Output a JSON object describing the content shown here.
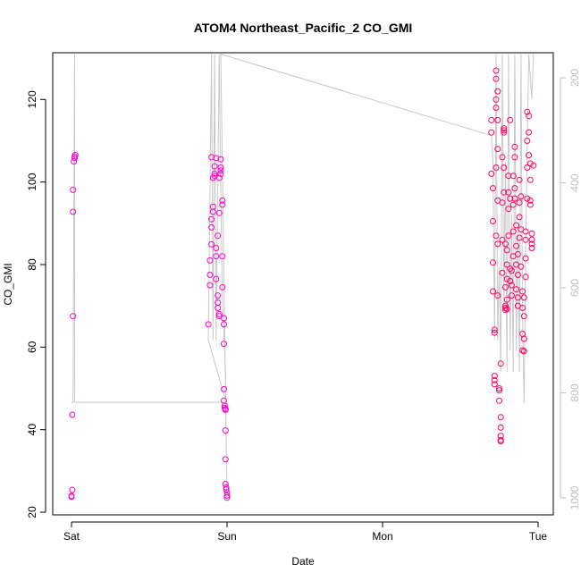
{
  "chart_data": {
    "type": "scatter",
    "title": "ATOM4 Northeast_Pacific_2 CO_GMI",
    "xlabel": "Date",
    "ylabel": "CO_GMI",
    "x_ticks": [
      "Sat",
      "Sun",
      "Mon",
      "Tue"
    ],
    "y_ticks": [
      20,
      40,
      60,
      80,
      100,
      120
    ],
    "y2_ticks": [
      200,
      400,
      600,
      800,
      1000
    ],
    "xlim_days": [
      -0.1,
      3.1
    ],
    "ylim": [
      20,
      131
    ],
    "y2lim": [
      1030,
      155
    ],
    "colors": {
      "points": "#ff00cc",
      "points_late": "#ff0066",
      "pressure": "#c8c8c8",
      "right_axis": "#bfbfbf"
    },
    "series": [
      {
        "values": [
          {
            "d": 0.0,
            "v": 23.7
          },
          {
            "d": 0.0,
            "v": 23.9
          },
          {
            "d": 0.005,
            "v": 25.4
          },
          {
            "d": 0.005,
            "v": 43.6
          },
          {
            "d": 0.01,
            "v": 67.5
          },
          {
            "d": 0.01,
            "v": 92.8
          },
          {
            "d": 0.01,
            "v": 98.1
          },
          {
            "d": 0.015,
            "v": 105.0
          },
          {
            "d": 0.02,
            "v": 105.8
          },
          {
            "d": 0.02,
            "v": 106.2
          },
          {
            "d": 0.025,
            "v": 106.6
          },
          {
            "d": 0.88,
            "v": 65.5
          },
          {
            "d": 0.89,
            "v": 75.0
          },
          {
            "d": 0.89,
            "v": 77.5
          },
          {
            "d": 0.89,
            "v": 81.0
          },
          {
            "d": 0.9,
            "v": 84.9
          },
          {
            "d": 0.9,
            "v": 89.0
          },
          {
            "d": 0.9,
            "v": 91.0
          },
          {
            "d": 0.91,
            "v": 92.8
          },
          {
            "d": 0.91,
            "v": 94.0
          },
          {
            "d": 0.91,
            "v": 101.0
          },
          {
            "d": 0.92,
            "v": 101.5
          },
          {
            "d": 0.92,
            "v": 102.0
          },
          {
            "d": 0.92,
            "v": 103.8
          },
          {
            "d": 0.93,
            "v": 105.8
          },
          {
            "d": 0.9,
            "v": 106.0
          },
          {
            "d": 0.93,
            "v": 76.5
          },
          {
            "d": 0.94,
            "v": 72.5
          },
          {
            "d": 0.94,
            "v": 70.8
          },
          {
            "d": 0.94,
            "v": 69.5
          },
          {
            "d": 0.95,
            "v": 68.0
          },
          {
            "d": 0.95,
            "v": 67.5
          },
          {
            "d": 0.93,
            "v": 82.0
          },
          {
            "d": 0.93,
            "v": 84.0
          },
          {
            "d": 0.94,
            "v": 87.0
          },
          {
            "d": 0.95,
            "v": 92.5
          },
          {
            "d": 0.95,
            "v": 101.0
          },
          {
            "d": 0.96,
            "v": 102.0
          },
          {
            "d": 0.96,
            "v": 102.8
          },
          {
            "d": 0.96,
            "v": 103.5
          },
          {
            "d": 0.96,
            "v": 105.5
          },
          {
            "d": 0.97,
            "v": 95.5
          },
          {
            "d": 0.97,
            "v": 94.5
          },
          {
            "d": 0.97,
            "v": 82.0
          },
          {
            "d": 0.97,
            "v": 74.5
          },
          {
            "d": 0.98,
            "v": 67.0
          },
          {
            "d": 0.98,
            "v": 65.5
          },
          {
            "d": 0.98,
            "v": 60.8
          },
          {
            "d": 0.98,
            "v": 49.8
          },
          {
            "d": 0.98,
            "v": 47.0
          },
          {
            "d": 0.985,
            "v": 45.8
          },
          {
            "d": 0.985,
            "v": 45.3
          },
          {
            "d": 0.99,
            "v": 45.0
          },
          {
            "d": 0.99,
            "v": 44.8
          },
          {
            "d": 0.99,
            "v": 39.8
          },
          {
            "d": 0.99,
            "v": 32.8
          },
          {
            "d": 0.99,
            "v": 26.8
          },
          {
            "d": 0.995,
            "v": 26.0
          },
          {
            "d": 0.995,
            "v": 25.5
          },
          {
            "d": 1.0,
            "v": 24.8
          },
          {
            "d": 1.0,
            "v": 24.0
          },
          {
            "d": 1.0,
            "v": 23.5
          }
        ]
      },
      {
        "values": [
          {
            "d": 2.7,
            "v": 115.0
          },
          {
            "d": 2.7,
            "v": 112.0
          },
          {
            "d": 2.7,
            "v": 102.0
          },
          {
            "d": 2.71,
            "v": 98.5
          },
          {
            "d": 2.71,
            "v": 90.5
          },
          {
            "d": 2.71,
            "v": 80.5
          },
          {
            "d": 2.71,
            "v": 73.5
          },
          {
            "d": 2.72,
            "v": 64.2
          },
          {
            "d": 2.72,
            "v": 63.5
          },
          {
            "d": 2.72,
            "v": 53.0
          },
          {
            "d": 2.72,
            "v": 52.0
          },
          {
            "d": 2.72,
            "v": 51.0
          },
          {
            "d": 2.73,
            "v": 127.0
          },
          {
            "d": 2.73,
            "v": 125.0
          },
          {
            "d": 2.73,
            "v": 120.0
          },
          {
            "d": 2.73,
            "v": 118.0
          },
          {
            "d": 2.73,
            "v": 103.5
          },
          {
            "d": 2.73,
            "v": 87.0
          },
          {
            "d": 2.74,
            "v": 122.0
          },
          {
            "d": 2.74,
            "v": 115.0
          },
          {
            "d": 2.74,
            "v": 108.0
          },
          {
            "d": 2.74,
            "v": 95.5
          },
          {
            "d": 2.74,
            "v": 85.0
          },
          {
            "d": 2.74,
            "v": 72.5
          },
          {
            "d": 2.75,
            "v": 50.0
          },
          {
            "d": 2.75,
            "v": 49.5
          },
          {
            "d": 2.75,
            "v": 47.0
          },
          {
            "d": 2.76,
            "v": 38.5
          },
          {
            "d": 2.76,
            "v": 37.2
          },
          {
            "d": 2.76,
            "v": 37.5
          },
          {
            "d": 2.76,
            "v": 40.5
          },
          {
            "d": 2.76,
            "v": 43.0
          },
          {
            "d": 2.76,
            "v": 56.0
          },
          {
            "d": 2.77,
            "v": 78.0
          },
          {
            "d": 2.77,
            "v": 86.0
          },
          {
            "d": 2.77,
            "v": 95.0
          },
          {
            "d": 2.77,
            "v": 106.0
          },
          {
            "d": 2.78,
            "v": 112.0
          },
          {
            "d": 2.78,
            "v": 112.5
          },
          {
            "d": 2.78,
            "v": 113.0
          },
          {
            "d": 2.78,
            "v": 103.5
          },
          {
            "d": 2.78,
            "v": 97.5
          },
          {
            "d": 2.79,
            "v": 85.0
          },
          {
            "d": 2.79,
            "v": 74.5
          },
          {
            "d": 2.79,
            "v": 70.0
          },
          {
            "d": 2.79,
            "v": 69.5
          },
          {
            "d": 2.79,
            "v": 69.0
          },
          {
            "d": 2.8,
            "v": 69.2
          },
          {
            "d": 2.8,
            "v": 71.5
          },
          {
            "d": 2.8,
            "v": 76.5
          },
          {
            "d": 2.8,
            "v": 80.0
          },
          {
            "d": 2.8,
            "v": 83.5
          },
          {
            "d": 2.81,
            "v": 87.0
          },
          {
            "d": 2.81,
            "v": 93.5
          },
          {
            "d": 2.81,
            "v": 97.5
          },
          {
            "d": 2.81,
            "v": 101.5
          },
          {
            "d": 2.82,
            "v": 115.0
          },
          {
            "d": 2.82,
            "v": 96.0
          },
          {
            "d": 2.82,
            "v": 79.0
          },
          {
            "d": 2.82,
            "v": 76.0
          },
          {
            "d": 2.83,
            "v": 75.0
          },
          {
            "d": 2.83,
            "v": 72.5
          },
          {
            "d": 2.83,
            "v": 78.5
          },
          {
            "d": 2.84,
            "v": 82.0
          },
          {
            "d": 2.84,
            "v": 88.0
          },
          {
            "d": 2.84,
            "v": 94.5
          },
          {
            "d": 2.84,
            "v": 101.5
          },
          {
            "d": 2.85,
            "v": 106.0
          },
          {
            "d": 2.85,
            "v": 108.5
          },
          {
            "d": 2.85,
            "v": 98.5
          },
          {
            "d": 2.85,
            "v": 96.0
          },
          {
            "d": 2.86,
            "v": 89.5
          },
          {
            "d": 2.86,
            "v": 84.5
          },
          {
            "d": 2.86,
            "v": 80.0
          },
          {
            "d": 2.86,
            "v": 74.0
          },
          {
            "d": 2.87,
            "v": 70.0
          },
          {
            "d": 2.87,
            "v": 72.0
          },
          {
            "d": 2.87,
            "v": 77.5
          },
          {
            "d": 2.87,
            "v": 82.5
          },
          {
            "d": 2.88,
            "v": 86.5
          },
          {
            "d": 2.88,
            "v": 91.5
          },
          {
            "d": 2.88,
            "v": 95.0
          },
          {
            "d": 2.88,
            "v": 100.5
          },
          {
            "d": 2.89,
            "v": 96.5
          },
          {
            "d": 2.89,
            "v": 88.5
          },
          {
            "d": 2.89,
            "v": 79.5
          },
          {
            "d": 2.9,
            "v": 73.5
          },
          {
            "d": 2.9,
            "v": 69.5
          },
          {
            "d": 2.9,
            "v": 63.2
          },
          {
            "d": 2.9,
            "v": 59.2
          },
          {
            "d": 2.91,
            "v": 59.0
          },
          {
            "d": 2.91,
            "v": 62.0
          },
          {
            "d": 2.91,
            "v": 67.5
          },
          {
            "d": 2.91,
            "v": 72.0
          },
          {
            "d": 2.92,
            "v": 77.0
          },
          {
            "d": 2.92,
            "v": 81.5
          },
          {
            "d": 2.92,
            "v": 86.0
          },
          {
            "d": 2.92,
            "v": 88.0
          },
          {
            "d": 2.93,
            "v": 96.0
          },
          {
            "d": 2.93,
            "v": 103.5
          },
          {
            "d": 2.93,
            "v": 110.0
          },
          {
            "d": 2.93,
            "v": 117.0
          },
          {
            "d": 2.94,
            "v": 116.0
          },
          {
            "d": 2.94,
            "v": 112.0
          },
          {
            "d": 2.94,
            "v": 106.5
          },
          {
            "d": 2.95,
            "v": 104.5
          },
          {
            "d": 2.95,
            "v": 100.5
          },
          {
            "d": 2.95,
            "v": 95.5
          },
          {
            "d": 2.95,
            "v": 94.5
          },
          {
            "d": 2.96,
            "v": 87.5
          },
          {
            "d": 2.96,
            "v": 86.0
          },
          {
            "d": 2.96,
            "v": 85.0
          },
          {
            "d": 2.96,
            "v": 84.0
          },
          {
            "d": 2.97,
            "v": 104.0
          }
        ]
      }
    ],
    "pressure_path": [
      {
        "d": 0.0,
        "p": 818
      },
      {
        "d": 0.01,
        "p": 818
      },
      {
        "d": 0.02,
        "p": 155
      },
      {
        "d": 0.02,
        "p": 818
      },
      {
        "d": 0.995,
        "p": 818
      },
      {
        "d": 0.88,
        "p": 700
      },
      {
        "d": 0.9,
        "p": 155
      },
      {
        "d": 0.91,
        "p": 700
      },
      {
        "d": 0.92,
        "p": 155
      },
      {
        "d": 0.93,
        "p": 700
      },
      {
        "d": 0.95,
        "p": 155
      },
      {
        "d": 0.96,
        "p": 420
      },
      {
        "d": 0.97,
        "p": 620
      },
      {
        "d": 0.99,
        "p": 760
      },
      {
        "d": 0.99,
        "p": 800
      },
      {
        "d": 1.0,
        "p": 1000
      },
      {
        "d": 0.96,
        "p": 155
      },
      {
        "d": 2.7,
        "p": 310
      },
      {
        "d": 2.71,
        "p": 360
      },
      {
        "d": 2.72,
        "p": 700
      },
      {
        "d": 2.73,
        "p": 155
      },
      {
        "d": 2.74,
        "p": 700
      },
      {
        "d": 2.75,
        "p": 560
      },
      {
        "d": 2.76,
        "p": 760
      },
      {
        "d": 2.77,
        "p": 155
      },
      {
        "d": 2.78,
        "p": 640
      },
      {
        "d": 2.79,
        "p": 360
      },
      {
        "d": 2.8,
        "p": 760
      },
      {
        "d": 2.81,
        "p": 155
      },
      {
        "d": 2.82,
        "p": 720
      },
      {
        "d": 2.83,
        "p": 460
      },
      {
        "d": 2.84,
        "p": 760
      },
      {
        "d": 2.85,
        "p": 155
      },
      {
        "d": 2.86,
        "p": 720
      },
      {
        "d": 2.87,
        "p": 480
      },
      {
        "d": 2.88,
        "p": 760
      },
      {
        "d": 2.89,
        "p": 155
      },
      {
        "d": 2.9,
        "p": 660
      },
      {
        "d": 2.91,
        "p": 820
      },
      {
        "d": 2.92,
        "p": 520
      },
      {
        "d": 2.93,
        "p": 330
      },
      {
        "d": 2.94,
        "p": 155
      },
      {
        "d": 2.95,
        "p": 200
      },
      {
        "d": 2.96,
        "p": 240
      },
      {
        "d": 2.97,
        "p": 155
      }
    ]
  }
}
